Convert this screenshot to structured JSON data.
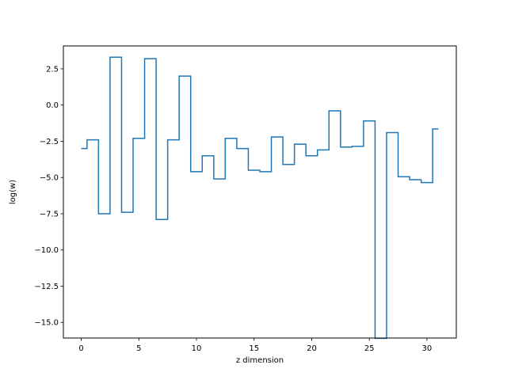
{
  "chart_data": {
    "type": "line",
    "drawstyle": "steps-mid",
    "title": "",
    "xlabel": "z dimension",
    "ylabel": "log(w)",
    "xlim": [
      -1.55,
      32.55
    ],
    "ylim": [
      -16.08,
      4.08
    ],
    "x_ticks": [
      0,
      5,
      10,
      15,
      20,
      25,
      30
    ],
    "y_ticks": [
      2.5,
      0.0,
      -2.5,
      -5.0,
      -7.5,
      -10.0,
      -12.5,
      -15.0
    ],
    "y_tick_labels": [
      "2.5",
      "0.0",
      "−2.5",
      "−5.0",
      "−7.5",
      "−10.0",
      "−12.5",
      "−15.0"
    ],
    "grid": false,
    "series": [
      {
        "color": "#1f77b4",
        "x": [
          0,
          1,
          2,
          3,
          4,
          5,
          6,
          7,
          8,
          9,
          10,
          11,
          12,
          13,
          14,
          15,
          16,
          17,
          18,
          19,
          20,
          21,
          22,
          23,
          24,
          25,
          26,
          27,
          28,
          29,
          30,
          31
        ],
        "values": [
          -3.0,
          -2.4,
          -7.5,
          3.3,
          -7.4,
          -2.3,
          3.2,
          -7.9,
          -2.4,
          2.0,
          -4.6,
          -3.5,
          -5.1,
          -2.3,
          -3.0,
          -4.5,
          -4.6,
          -2.2,
          -4.1,
          -2.7,
          -3.5,
          -3.1,
          -0.4,
          -2.9,
          -2.85,
          -1.1,
          -16.1,
          -1.9,
          -4.95,
          -5.15,
          -5.35,
          -1.65
        ]
      }
    ]
  }
}
